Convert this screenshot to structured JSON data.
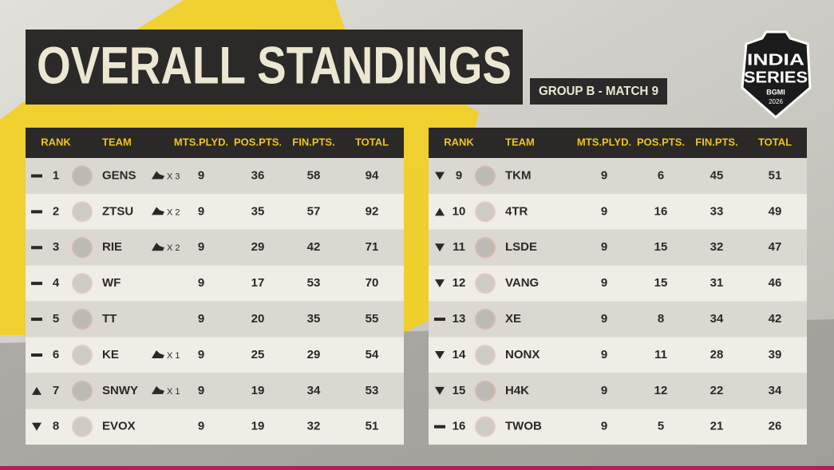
{
  "header": {
    "title": "OVERALL STANDINGS",
    "subtitle": "GROUP B - MATCH 9"
  },
  "logo": {
    "line1": "INDIA",
    "line2": "SERIES",
    "brand": "BGMI",
    "year": "2026"
  },
  "tables": [
    {
      "columns": [
        "RANK",
        "TEAM",
        "MTS.PLYD.",
        "POS.PTS.",
        "FIN.PTS.",
        "TOTAL"
      ],
      "rows": [
        {
          "trend": "same",
          "rank": 1,
          "team": "GENS",
          "wins": "X 3",
          "mts": 9,
          "pos": 36,
          "fin": 58,
          "total": 94
        },
        {
          "trend": "same",
          "rank": 2,
          "team": "ZTSU",
          "wins": "X 2",
          "mts": 9,
          "pos": 35,
          "fin": 57,
          "total": 92
        },
        {
          "trend": "same",
          "rank": 3,
          "team": "RIE",
          "wins": "X 2",
          "mts": 9,
          "pos": 29,
          "fin": 42,
          "total": 71
        },
        {
          "trend": "same",
          "rank": 4,
          "team": "WF",
          "mts": 9,
          "pos": 17,
          "fin": 53,
          "total": 70
        },
        {
          "trend": "same",
          "rank": 5,
          "team": "TT",
          "mts": 9,
          "pos": 20,
          "fin": 35,
          "total": 55
        },
        {
          "trend": "same",
          "rank": 6,
          "team": "KE",
          "wins": "X 1",
          "mts": 9,
          "pos": 25,
          "fin": 29,
          "total": 54
        },
        {
          "trend": "up",
          "rank": 7,
          "team": "SNWY",
          "wins": "X 1",
          "mts": 9,
          "pos": 19,
          "fin": 34,
          "total": 53
        },
        {
          "trend": "down",
          "rank": 8,
          "team": "EVOX",
          "mts": 9,
          "pos": 19,
          "fin": 32,
          "total": 51
        }
      ]
    },
    {
      "columns": [
        "RANK",
        "TEAM",
        "MTS.PLYD.",
        "POS.PTS.",
        "FIN.PTS.",
        "TOTAL"
      ],
      "rows": [
        {
          "trend": "down",
          "rank": 9,
          "team": "TKM",
          "mts": 9,
          "pos": 6,
          "fin": 45,
          "total": 51
        },
        {
          "trend": "up",
          "rank": 10,
          "team": "4TR",
          "mts": 9,
          "pos": 16,
          "fin": 33,
          "total": 49
        },
        {
          "trend": "down",
          "rank": 11,
          "team": "LSDE",
          "mts": 9,
          "pos": 15,
          "fin": 32,
          "total": 47
        },
        {
          "trend": "down",
          "rank": 12,
          "team": "VANG",
          "mts": 9,
          "pos": 15,
          "fin": 31,
          "total": 46
        },
        {
          "trend": "same",
          "rank": 13,
          "team": "XE",
          "mts": 9,
          "pos": 8,
          "fin": 34,
          "total": 42
        },
        {
          "trend": "down",
          "rank": 14,
          "team": "NONX",
          "mts": 9,
          "pos": 11,
          "fin": 28,
          "total": 39
        },
        {
          "trend": "down",
          "rank": 15,
          "team": "H4K",
          "mts": 9,
          "pos": 12,
          "fin": 22,
          "total": 34
        },
        {
          "trend": "same",
          "rank": 16,
          "team": "TWOB",
          "mts": 9,
          "pos": 5,
          "fin": 21,
          "total": 26
        }
      ]
    }
  ]
}
